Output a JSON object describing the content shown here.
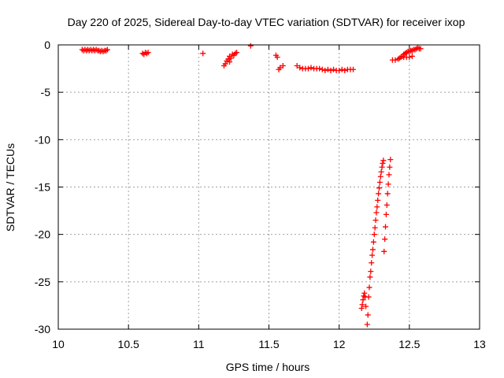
{
  "chart_data": {
    "type": "scatter",
    "title": "Day 220 of 2025, Sidereal Day-to-day VTEC variation (SDTVAR) for receiver ixop",
    "xlabel": "GPS time / hours",
    "ylabel": "SDTVAR / TECUs",
    "xlim": [
      10,
      13
    ],
    "ylim": [
      -30,
      0
    ],
    "xticks": [
      10,
      10.5,
      11,
      11.5,
      12,
      12.5,
      13
    ],
    "xtick_labels": [
      "10",
      "10.5",
      "11",
      "11.5",
      "12",
      "12.5",
      "13"
    ],
    "yticks": [
      0,
      -5,
      -10,
      -15,
      -20,
      -25,
      -30
    ],
    "ytick_labels": [
      "0",
      "-5",
      "-10",
      "-15",
      "-20",
      "-25",
      "-30"
    ],
    "grid": true,
    "marker": "+",
    "series": [
      {
        "name": "SDTVAR",
        "color": "#ff0000",
        "x": [
          10.17,
          10.18,
          10.19,
          10.2,
          10.21,
          10.22,
          10.23,
          10.24,
          10.25,
          10.26,
          10.27,
          10.28,
          10.29,
          10.3,
          10.31,
          10.32,
          10.33,
          10.34,
          10.35,
          10.6,
          10.61,
          10.62,
          10.63,
          10.64,
          11.03,
          11.18,
          11.19,
          11.2,
          11.21,
          11.22,
          11.22,
          11.23,
          11.24,
          11.25,
          11.26,
          11.27,
          11.37,
          11.55,
          11.56,
          11.57,
          11.58,
          11.6,
          11.7,
          11.72,
          11.74,
          11.76,
          11.78,
          11.8,
          11.82,
          11.84,
          11.86,
          11.88,
          11.9,
          11.92,
          11.94,
          11.96,
          11.98,
          12.0,
          12.02,
          12.04,
          12.06,
          12.08,
          12.1,
          12.16,
          12.165,
          12.17,
          12.175,
          12.18,
          12.185,
          12.19,
          12.2,
          12.205,
          12.21,
          12.215,
          12.22,
          12.225,
          12.23,
          12.235,
          12.24,
          12.245,
          12.25,
          12.255,
          12.26,
          12.265,
          12.27,
          12.275,
          12.28,
          12.285,
          12.29,
          12.295,
          12.3,
          12.305,
          12.31,
          12.315,
          12.32,
          12.325,
          12.33,
          12.335,
          12.34,
          12.345,
          12.35,
          12.355,
          12.36,
          12.365,
          12.38,
          12.4,
          12.42,
          12.43,
          12.44,
          12.45,
          12.46,
          12.47,
          12.48,
          12.49,
          12.5,
          12.51,
          12.52,
          12.53,
          12.54,
          12.55,
          12.56,
          12.57,
          12.58,
          12.46,
          12.48,
          12.5,
          12.52
        ],
        "y": [
          -0.5,
          -0.6,
          -0.5,
          -0.6,
          -0.5,
          -0.6,
          -0.5,
          -0.6,
          -0.5,
          -0.6,
          -0.5,
          -0.6,
          -0.6,
          -0.7,
          -0.6,
          -0.7,
          -0.6,
          -0.6,
          -0.5,
          -0.9,
          -1.0,
          -0.8,
          -0.9,
          -0.8,
          -0.9,
          -2.2,
          -2.0,
          -1.7,
          -1.5,
          -1.2,
          -1.8,
          -1.4,
          -1.0,
          -1.1,
          -0.9,
          -0.8,
          -0.1,
          -1.1,
          -1.3,
          -2.6,
          -2.4,
          -2.2,
          -2.2,
          -2.4,
          -2.5,
          -2.5,
          -2.5,
          -2.4,
          -2.5,
          -2.5,
          -2.5,
          -2.6,
          -2.7,
          -2.6,
          -2.7,
          -2.6,
          -2.7,
          -2.7,
          -2.6,
          -2.7,
          -2.6,
          -2.6,
          -2.6,
          -27.8,
          -27.4,
          -26.9,
          -26.5,
          -26.2,
          -26.6,
          -27.6,
          -29.5,
          -28.5,
          -26.6,
          -25.6,
          -24.5,
          -23.9,
          -23.0,
          -22.2,
          -21.6,
          -20.8,
          -20.0,
          -19.3,
          -18.5,
          -17.7,
          -17.1,
          -16.4,
          -15.7,
          -15.1,
          -14.5,
          -13.9,
          -13.4,
          -12.9,
          -12.5,
          -12.2,
          -21.8,
          -20.5,
          -19.2,
          -17.9,
          -16.9,
          -15.7,
          -14.7,
          -13.7,
          -12.9,
          -12.1,
          -1.6,
          -1.6,
          -1.5,
          -1.4,
          -1.3,
          -1.2,
          -1.0,
          -0.9,
          -0.8,
          -0.7,
          -0.7,
          -0.6,
          -0.6,
          -0.5,
          -0.5,
          -0.4,
          -0.3,
          -0.4,
          -0.4,
          -1.3,
          -1.3,
          -1.3,
          -1.2
        ]
      }
    ]
  }
}
